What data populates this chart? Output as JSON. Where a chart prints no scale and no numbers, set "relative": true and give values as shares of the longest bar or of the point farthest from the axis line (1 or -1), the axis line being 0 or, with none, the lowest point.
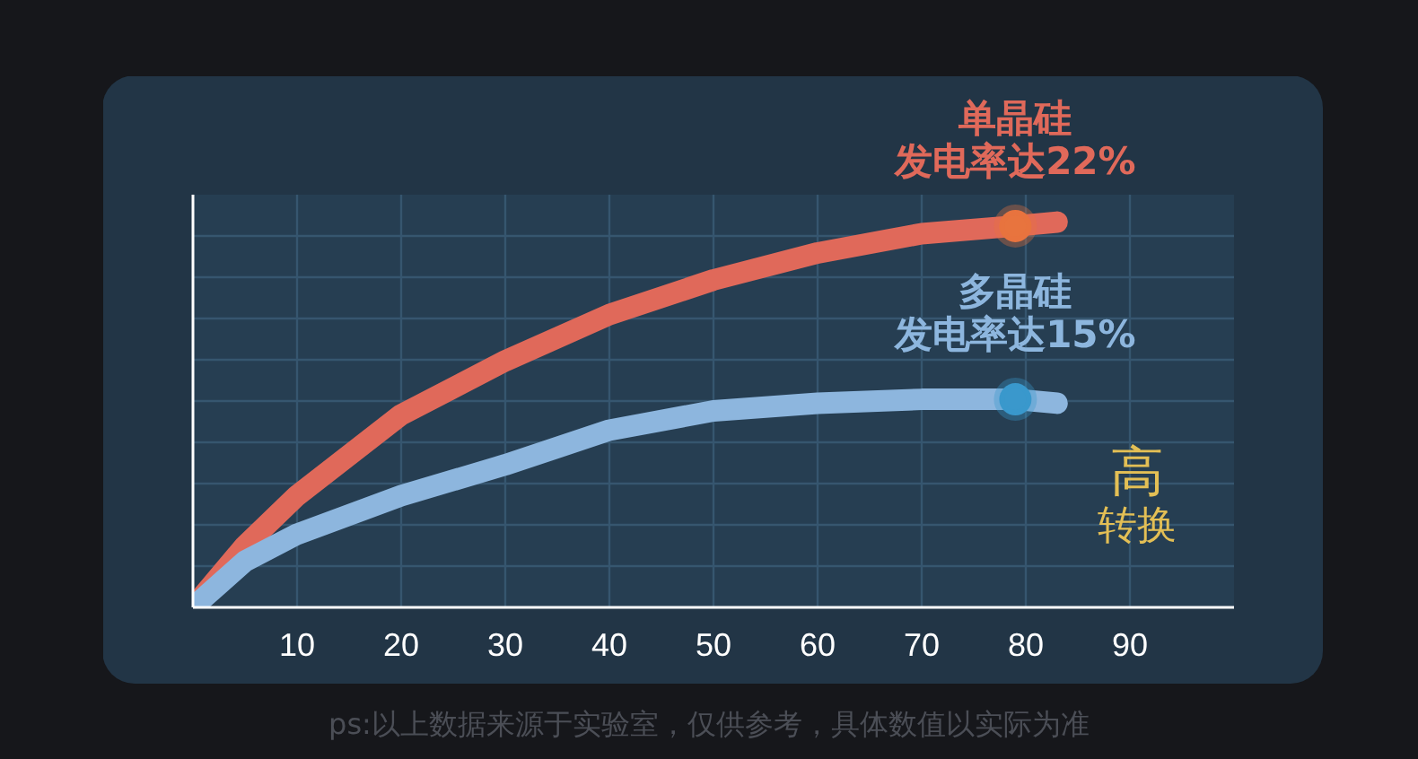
{
  "chart_data": {
    "type": "line",
    "relative": true,
    "x": [
      0,
      5,
      10,
      20,
      30,
      40,
      50,
      60,
      70,
      79,
      83
    ],
    "xlim": [
      0,
      100
    ],
    "xticks": [
      10,
      20,
      30,
      40,
      50,
      60,
      70,
      80,
      90
    ],
    "grid": true,
    "tick_labels": "x",
    "series": [
      {
        "name": "单晶硅",
        "color": "#e0695a",
        "values": [
          0,
          0.16,
          0.29,
          0.5,
          0.64,
          0.76,
          0.85,
          0.92,
          0.97,
          0.99,
          1.0
        ]
      },
      {
        "name": "多晶硅",
        "color": "#8db6de",
        "values": [
          0,
          0.12,
          0.19,
          0.29,
          0.37,
          0.46,
          0.51,
          0.53,
          0.54,
          0.54,
          0.53
        ]
      },
      {
        "type": "scatter",
        "x": [
          79
        ],
        "color": "#e8743e",
        "values": [
          0.99
        ]
      },
      {
        "type": "scatter",
        "x": [
          79
        ],
        "color": "#3a98cc",
        "values": [
          0.54
        ]
      }
    ],
    "annotations": [
      {
        "text": "发电率达22%",
        "x": 79,
        "y": 0.99
      },
      {
        "text": "发电率达15%",
        "x": 79,
        "y": 0.54
      },
      "高",
      "转换",
      "ps:以上数据来源于实验室，仅供参考，具体数值以实际为准"
    ]
  }
}
